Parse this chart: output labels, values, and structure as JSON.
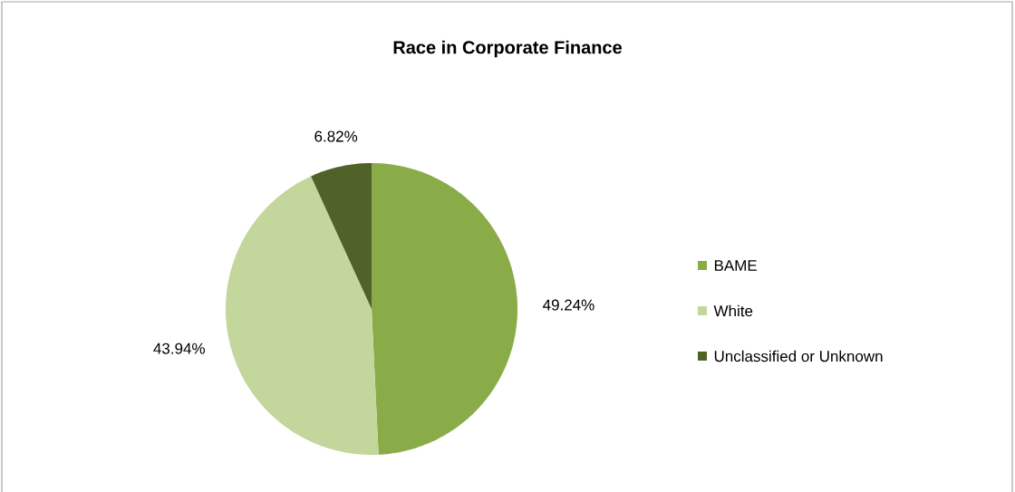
{
  "chart_data": {
    "type": "pie",
    "title": "Race in Corporate Finance",
    "categories": [
      "BAME",
      "White",
      "Unclassified or Unknown"
    ],
    "values": [
      49.24,
      43.94,
      6.82
    ],
    "colors": [
      "#8aac48",
      "#c3d69b",
      "#4f6228"
    ],
    "value_labels": [
      "49.24%",
      "43.94%",
      "6.82%"
    ],
    "legend": "right"
  }
}
